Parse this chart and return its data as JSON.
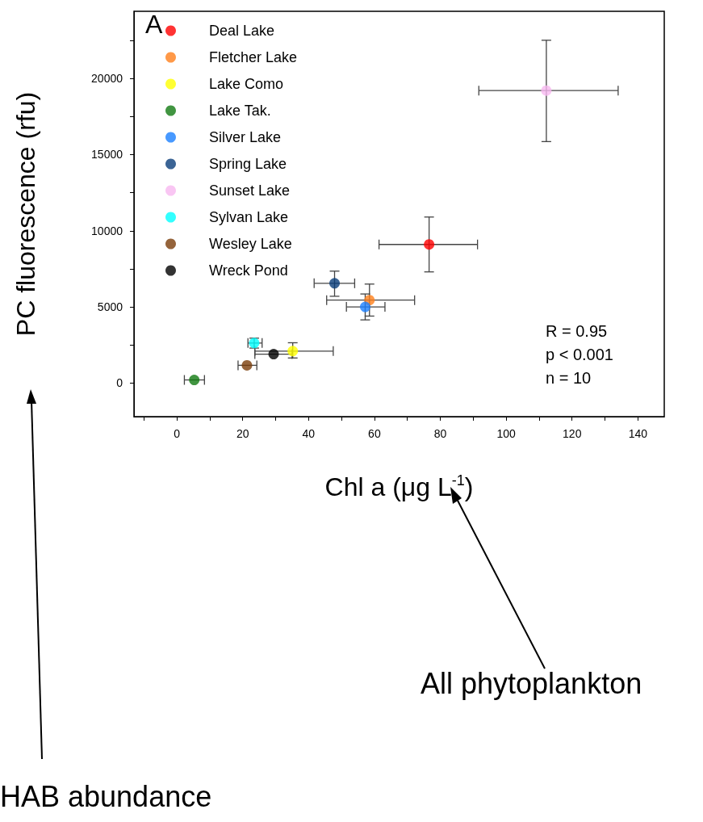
{
  "chart_data": {
    "type": "scatter",
    "xlabel": "Chl a (μg L$^{-1}$)",
    "ylabel": "PC fluorescence (rfu)",
    "xlim": [
      -13,
      148
    ],
    "xticks": [
      0,
      20,
      40,
      60,
      80,
      100,
      120,
      140
    ],
    "ylim": [
      -2200,
      24400
    ],
    "yticks": [
      0,
      5000,
      10000,
      15000,
      20000
    ],
    "grid": false,
    "legend": "top left",
    "marker": "circle",
    "annotations": [
      "A",
      "R = 0.95",
      "p < 0.001",
      "n = 10",
      "All phytoplankton",
      "HAB abundance"
    ],
    "series": [
      {
        "name": "Deal Lake",
        "color": "#ff0000",
        "x": [
          76.6
        ],
        "values": [
          9100
        ],
        "xerrors": [
          [
            61.4,
            91.3
          ]
        ],
        "errors": [
          [
            7300,
            10900
          ]
        ]
      },
      {
        "name": "Fletcher Lake",
        "color": "#ff7f1a",
        "x": [
          58.5
        ],
        "values": [
          5450
        ],
        "xerrors": [
          [
            45.5,
            72.2
          ]
        ],
        "errors": [
          [
            4400,
            6500
          ]
        ]
      },
      {
        "name": "Lake Como",
        "color": "#ffff00",
        "x": [
          35.2
        ],
        "values": [
          2100
        ],
        "xerrors": [
          [
            23.7,
            47.5
          ]
        ],
        "errors": [
          [
            1650,
            2650
          ]
        ]
      },
      {
        "name": "Lake Tak.",
        "color": "#117a11",
        "x": [
          5.3
        ],
        "values": [
          210
        ],
        "xerrors": [
          [
            2.3,
            8.4
          ]
        ],
        "errors": [
          null
        ]
      },
      {
        "name": "Silver Lake",
        "color": "#1a80ff",
        "x": [
          57.2
        ],
        "values": [
          5000
        ],
        "xerrors": [
          [
            51.5,
            63.2
          ]
        ],
        "errors": [
          [
            4150,
            5850
          ]
        ]
      },
      {
        "name": "Spring Lake",
        "color": "#0a3d7a",
        "x": [
          47.9
        ],
        "values": [
          6550
        ],
        "xerrors": [
          [
            41.7,
            54.0
          ]
        ],
        "errors": [
          [
            5700,
            7350
          ]
        ]
      },
      {
        "name": "Sunset Lake",
        "color": "#f7b8f0",
        "x": [
          112.2
        ],
        "values": [
          19200
        ],
        "xerrors": [
          [
            91.7,
            134.0
          ]
        ],
        "errors": [
          [
            15850,
            22500
          ]
        ]
      },
      {
        "name": "Sylvan Lake",
        "color": "#00ffff",
        "x": [
          23.5
        ],
        "values": [
          2630
        ],
        "xerrors": [
          [
            21.6,
            25.9
          ]
        ],
        "errors": [
          [
            2300,
            2950
          ]
        ]
      },
      {
        "name": "Wesley Lake",
        "color": "#7a3d0a",
        "x": [
          21.3
        ],
        "values": [
          1170
        ],
        "xerrors": [
          [
            18.6,
            24.3
          ]
        ],
        "errors": [
          null
        ]
      },
      {
        "name": "Wreck Pond",
        "color": "#000000",
        "x": [
          29.4
        ],
        "values": [
          1900
        ],
        "xerrors": [
          [
            23.7,
            35.0
          ]
        ],
        "errors": [
          null
        ]
      }
    ]
  }
}
